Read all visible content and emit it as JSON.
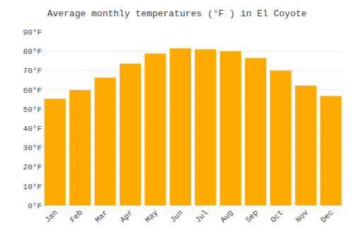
{
  "chart_data": {
    "type": "bar",
    "title": "Average monthly temperatures (°F ) in El Coyote",
    "categories": [
      "Jan",
      "Feb",
      "Mar",
      "Apr",
      "May",
      "Jun",
      "Jul",
      "Aug",
      "Sep",
      "Oct",
      "Nov",
      "Dec"
    ],
    "values": [
      55.4,
      59.9,
      66.3,
      73.6,
      78.8,
      81.5,
      81.0,
      80.0,
      76.5,
      70.0,
      62.2,
      56.8
    ],
    "color": "#FFAA00",
    "ylim": [
      0,
      90
    ],
    "yticks": [
      {
        "value": 0,
        "label": "0°F"
      },
      {
        "value": 10,
        "label": "10°F"
      },
      {
        "value": 20,
        "label": "20°F"
      },
      {
        "value": 30,
        "label": "30°F"
      },
      {
        "value": 40,
        "label": "40°F"
      },
      {
        "value": 50,
        "label": "50°F"
      },
      {
        "value": 60,
        "label": "60°F"
      },
      {
        "value": 70,
        "label": "70°F"
      },
      {
        "value": 80,
        "label": "80°F"
      },
      {
        "value": 90,
        "label": "90°F"
      }
    ],
    "grid": true
  }
}
